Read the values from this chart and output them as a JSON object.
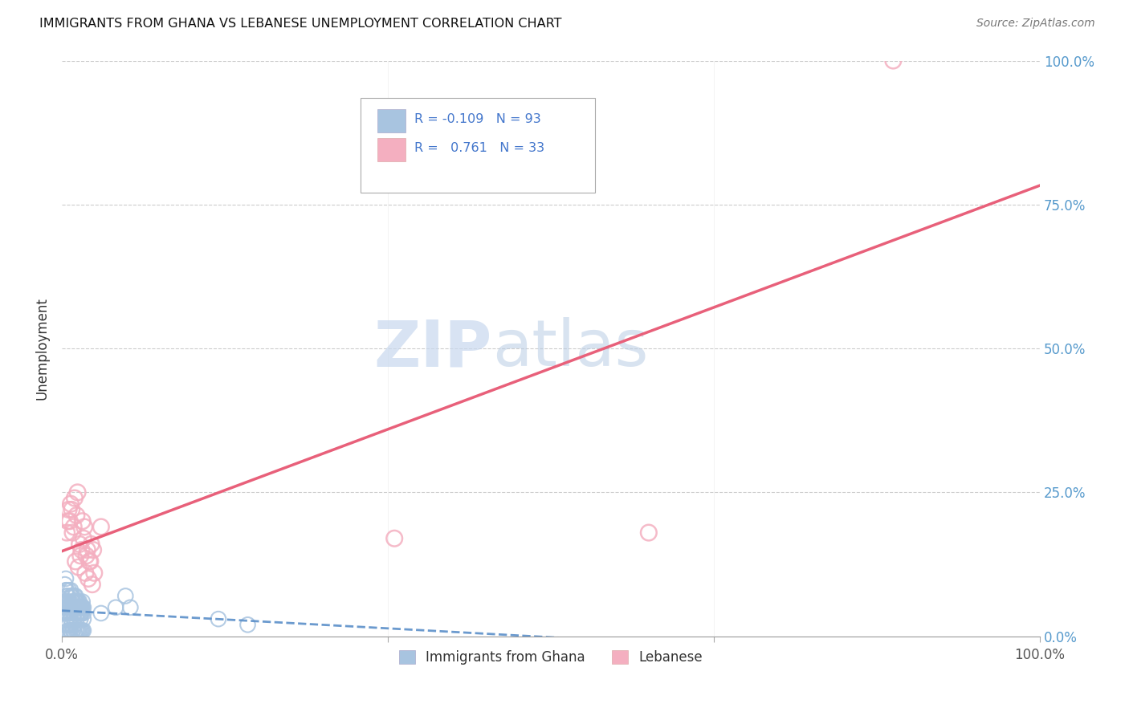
{
  "title": "IMMIGRANTS FROM GHANA VS LEBANESE UNEMPLOYMENT CORRELATION CHART",
  "source": "Source: ZipAtlas.com",
  "ylabel": "Unemployment",
  "ghana_color": "#a8c4e0",
  "lebanese_color": "#f4afc0",
  "ghana_line_color": "#5b8fc9",
  "lebanese_line_color": "#e8607a",
  "watermark_zip": "ZIP",
  "watermark_atlas": "atlas",
  "ghana_R": -0.109,
  "ghana_N": 93,
  "lebanese_R": 0.761,
  "lebanese_N": 33,
  "ghana_scatter_x": [
    0.003,
    0.004,
    0.005,
    0.006,
    0.007,
    0.008,
    0.009,
    0.01,
    0.011,
    0.012,
    0.013,
    0.014,
    0.015,
    0.016,
    0.017,
    0.018,
    0.019,
    0.02,
    0.021,
    0.022,
    0.003,
    0.004,
    0.005,
    0.006,
    0.007,
    0.008,
    0.009,
    0.01,
    0.011,
    0.012,
    0.013,
    0.014,
    0.015,
    0.016,
    0.017,
    0.018,
    0.019,
    0.02,
    0.021,
    0.022,
    0.003,
    0.004,
    0.005,
    0.006,
    0.007,
    0.008,
    0.009,
    0.01,
    0.011,
    0.012,
    0.013,
    0.014,
    0.015,
    0.016,
    0.017,
    0.018,
    0.019,
    0.02,
    0.021,
    0.022,
    0.003,
    0.006,
    0.009,
    0.012,
    0.015,
    0.04,
    0.055,
    0.065,
    0.07,
    0.16,
    0.19,
    0.004,
    0.007,
    0.01,
    0.013,
    0.016,
    0.019,
    0.022,
    0.005,
    0.008,
    0.011,
    0.014,
    0.017,
    0.02,
    0.006,
    0.009,
    0.012,
    0.015,
    0.018,
    0.021,
    0.007,
    0.01,
    0.013
  ],
  "ghana_scatter_y": [
    0.06,
    0.08,
    0.07,
    0.05,
    0.06,
    0.04,
    0.07,
    0.05,
    0.06,
    0.04,
    0.05,
    0.06,
    0.04,
    0.05,
    0.04,
    0.05,
    0.03,
    0.04,
    0.05,
    0.03,
    0.09,
    0.1,
    0.08,
    0.07,
    0.08,
    0.06,
    0.08,
    0.07,
    0.07,
    0.06,
    0.07,
    0.07,
    0.06,
    0.06,
    0.06,
    0.06,
    0.05,
    0.05,
    0.06,
    0.05,
    0.05,
    0.06,
    0.05,
    0.04,
    0.05,
    0.05,
    0.05,
    0.04,
    0.05,
    0.05,
    0.04,
    0.05,
    0.05,
    0.04,
    0.05,
    0.04,
    0.04,
    0.04,
    0.05,
    0.04,
    0.04,
    0.04,
    0.03,
    0.03,
    0.03,
    0.04,
    0.05,
    0.07,
    0.05,
    0.03,
    0.02,
    0.03,
    0.02,
    0.02,
    0.02,
    0.01,
    0.01,
    0.01,
    0.02,
    0.01,
    0.01,
    0.01,
    0.01,
    0.01,
    0.01,
    0.01,
    0.01,
    0.01,
    0.01,
    0.01,
    0.005,
    0.005,
    0.005
  ],
  "lebanese_scatter_x": [
    0.005,
    0.008,
    0.01,
    0.012,
    0.015,
    0.018,
    0.02,
    0.022,
    0.025,
    0.028,
    0.03,
    0.032,
    0.006,
    0.009,
    0.011,
    0.014,
    0.017,
    0.019,
    0.021,
    0.024,
    0.027,
    0.031,
    0.007,
    0.013,
    0.016,
    0.023,
    0.029,
    0.033,
    0.026,
    0.6,
    0.34,
    0.85,
    0.04
  ],
  "lebanese_scatter_y": [
    0.18,
    0.2,
    0.22,
    0.19,
    0.21,
    0.16,
    0.15,
    0.17,
    0.14,
    0.13,
    0.16,
    0.15,
    0.2,
    0.23,
    0.18,
    0.13,
    0.12,
    0.14,
    0.2,
    0.11,
    0.1,
    0.09,
    0.22,
    0.24,
    0.25,
    0.19,
    0.13,
    0.11,
    0.15,
    0.18,
    0.17,
    1.0,
    0.19
  ]
}
